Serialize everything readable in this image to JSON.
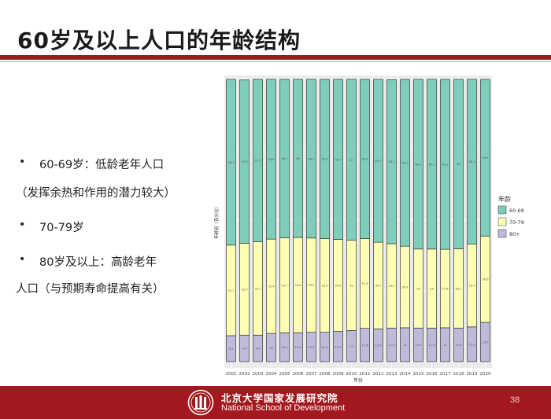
{
  "slide": {
    "title": "60岁及以上人口的年龄结构",
    "page_number": "38"
  },
  "bullets": [
    {
      "dot": "•",
      "text": "60-69岁：低龄老年人口"
    },
    {
      "dot": "",
      "text": "（发挥余热和作用的潜力较大）"
    },
    {
      "dot": "•",
      "text": "70-79岁"
    },
    {
      "dot": "•",
      "text": "80岁及以上：高龄老年"
    },
    {
      "dot": "",
      "text": "人口（与预期寿命提高有关）"
    }
  ],
  "footer": {
    "org_cn": "北京大学国家发展研究院",
    "org_en": "National School of Development"
  },
  "colors": {
    "brand_red": "#a3181e",
    "age_60_69": "#7fcdbb",
    "age_70_79": "#ffffb3",
    "age_80_plus": "#bebada"
  },
  "chart_data": {
    "type": "bar",
    "stacked": true,
    "normalized": true,
    "title": "",
    "xlabel": "年份",
    "ylabel": "年龄组（百分比）",
    "categories": [
      "2001",
      "2002",
      "2003",
      "2004",
      "2005",
      "2006",
      "2007",
      "2008",
      "2009",
      "2010",
      "2011",
      "2012",
      "2013",
      "2014",
      "2015",
      "2016",
      "2017",
      "2018",
      "2019",
      "2020"
    ],
    "legend": {
      "title": "年龄",
      "placement": "right"
    },
    "series": [
      {
        "name": "80+",
        "color": "#bebada",
        "values": [
          9.2,
          9.4,
          9.4,
          10,
          10.2,
          10.2,
          10.4,
          10.4,
          10.7,
          11,
          11.8,
          11.6,
          11.9,
          12,
          11.9,
          11.9,
          12,
          11.9,
          12.3,
          13.9
        ]
      },
      {
        "name": "70-79",
        "color": "#ffffb3",
        "values": [
          32.1,
          32.5,
          33.1,
          33.4,
          33.7,
          33.8,
          33.4,
          33.2,
          32.6,
          32,
          31.8,
          30.7,
          29.9,
          28.9,
          28,
          28,
          27.8,
          28.1,
          29.4,
          30.6
        ]
      },
      {
        "name": "60-69",
        "color": "#7fcdbb",
        "values": [
          58.7,
          57.9,
          57.5,
          56.6,
          56.1,
          56,
          56.2,
          56.4,
          56.7,
          57,
          56.4,
          57.7,
          58.1,
          59.1,
          60.1,
          60.1,
          60.2,
          60,
          58.3,
          55.5
        ]
      }
    ],
    "data_labels": {
      "80+": [
        "9.2",
        "9.4",
        "9.4",
        "10",
        "10.2",
        "10.2",
        "10.4",
        "10.4",
        "10.7",
        "11",
        "11.8",
        "11.6",
        "11.9",
        "12",
        "11.9",
        "11.9",
        "12",
        "11.9",
        "12.3",
        "13.9"
      ],
      "70-79": [
        "32.1",
        "32.5",
        "33.1",
        "33.4",
        "33.7",
        "33.8",
        "33.4",
        "33.2",
        "32.6",
        "32",
        "31.8",
        "30.7",
        "29.9",
        "28.9",
        "28",
        "28",
        "27.8",
        "28.1",
        "29.4",
        "30.6"
      ],
      "60-69": [
        "58.7",
        "57.9",
        "57.5",
        "56.6",
        "56.1",
        "56",
        "56.2",
        "56.4",
        "56.7",
        "57",
        "56.4",
        "57.7",
        "58.1",
        "59.1",
        "60.1",
        "60.1",
        "60.2",
        "60",
        "58.3",
        "55.5"
      ]
    },
    "ylim": [
      0,
      100
    ],
    "grid": true,
    "background": "#ebebeb"
  }
}
